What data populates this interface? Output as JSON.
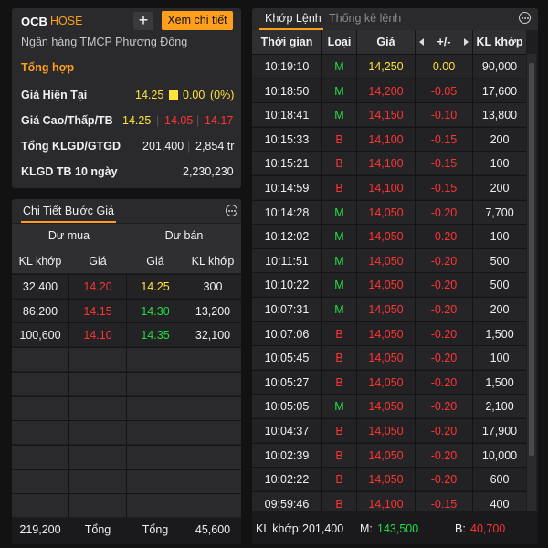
{
  "info": {
    "ticker": "OCB",
    "exchange": "HOSE",
    "plus_label": "+",
    "detail_button": "Xem chi tiết",
    "bank_name": "Ngân hàng TMCP Phương Đông",
    "summary_title": "Tổng hợp",
    "current_price_label": "Giá Hiện Tại",
    "current_price": "14.25",
    "change": "0.00",
    "change_pct": "(0%)",
    "hilo_label": "Giá Cao/Thấp/TB",
    "high": "14.25",
    "low": "14.05",
    "avg": "14.17",
    "sep": "|",
    "volume_label": "Tổng KLGD/GTGD",
    "total_volume": "201,400",
    "total_value": "2,854 tr",
    "avg10_label": "KLGD TB 10 ngày",
    "avg10_value": "2,230,230"
  },
  "steps": {
    "title": "Chi Tiết Bước Giá",
    "buy_header": "Dư mua",
    "sell_header": "Dư bán",
    "col_vol": "KL khớp",
    "col_price": "Giá",
    "rows": [
      {
        "buy_vol": "32,400",
        "buy_price": "14.20",
        "sell_price": "14.25",
        "sell_vol": "300"
      },
      {
        "buy_vol": "86,200",
        "buy_price": "14.15",
        "sell_price": "14.30",
        "sell_vol": "13,200"
      },
      {
        "buy_vol": "100,600",
        "buy_price": "14.10",
        "sell_price": "14.35",
        "sell_vol": "32,100"
      }
    ],
    "footer": {
      "buy_total": "219,200",
      "buy_label": "Tổng",
      "sell_label": "Tổng",
      "sell_total": "45,600"
    }
  },
  "trades": {
    "tabs": [
      "Khớp Lệnh",
      "Thống kê lệnh"
    ],
    "headers": {
      "time": "Thời gian",
      "type": "Loại",
      "price": "Giá",
      "change": "+/-",
      "volume": "KL khớp"
    },
    "rows": [
      {
        "time": "10:19:10",
        "type": "M",
        "price": "14,250",
        "change": "0.00",
        "volume": "90,000",
        "color": "yellow"
      },
      {
        "time": "10:18:50",
        "type": "M",
        "price": "14,200",
        "change": "-0.05",
        "volume": "17,600",
        "color": "red"
      },
      {
        "time": "10:18:41",
        "type": "M",
        "price": "14,150",
        "change": "-0.10",
        "volume": "13,800",
        "color": "red"
      },
      {
        "time": "10:15:33",
        "type": "B",
        "price": "14,100",
        "change": "-0.15",
        "volume": "200",
        "color": "red"
      },
      {
        "time": "10:15:21",
        "type": "B",
        "price": "14,100",
        "change": "-0.15",
        "volume": "100",
        "color": "red"
      },
      {
        "time": "10:14:59",
        "type": "B",
        "price": "14,100",
        "change": "-0.15",
        "volume": "200",
        "color": "red"
      },
      {
        "time": "10:14:28",
        "type": "M",
        "price": "14,050",
        "change": "-0.20",
        "volume": "7,700",
        "color": "red"
      },
      {
        "time": "10:12:02",
        "type": "M",
        "price": "14,050",
        "change": "-0.20",
        "volume": "100",
        "color": "red"
      },
      {
        "time": "10:11:51",
        "type": "M",
        "price": "14,050",
        "change": "-0.20",
        "volume": "500",
        "color": "red"
      },
      {
        "time": "10:10:22",
        "type": "M",
        "price": "14,050",
        "change": "-0.20",
        "volume": "500",
        "color": "red"
      },
      {
        "time": "10:07:31",
        "type": "M",
        "price": "14,050",
        "change": "-0.20",
        "volume": "200",
        "color": "red"
      },
      {
        "time": "10:07:06",
        "type": "B",
        "price": "14,050",
        "change": "-0.20",
        "volume": "1,500",
        "color": "red"
      },
      {
        "time": "10:05:45",
        "type": "B",
        "price": "14,050",
        "change": "-0.20",
        "volume": "100",
        "color": "red"
      },
      {
        "time": "10:05:27",
        "type": "B",
        "price": "14,050",
        "change": "-0.20",
        "volume": "1,500",
        "color": "red"
      },
      {
        "time": "10:05:05",
        "type": "M",
        "price": "14,050",
        "change": "-0.20",
        "volume": "2,100",
        "color": "red"
      },
      {
        "time": "10:04:37",
        "type": "B",
        "price": "14,050",
        "change": "-0.20",
        "volume": "17,900",
        "color": "red"
      },
      {
        "time": "10:02:39",
        "type": "B",
        "price": "14,050",
        "change": "-0.20",
        "volume": "10,000",
        "color": "red"
      },
      {
        "time": "10:02:22",
        "type": "B",
        "price": "14,050",
        "change": "-0.20",
        "volume": "600",
        "color": "red"
      },
      {
        "time": "09:59:46",
        "type": "B",
        "price": "14,100",
        "change": "-0.15",
        "volume": "400",
        "color": "red"
      }
    ],
    "footer": {
      "vol_label": "KL khớp:",
      "vol_value": "201,400",
      "m_label": "M:",
      "m_value": "143,500",
      "b_label": "B:",
      "b_value": "40,700"
    }
  },
  "colors": {
    "accent": "#ff9f1c",
    "up": "#22dd44",
    "down": "#ff3333",
    "ref": "#ffe23b"
  }
}
